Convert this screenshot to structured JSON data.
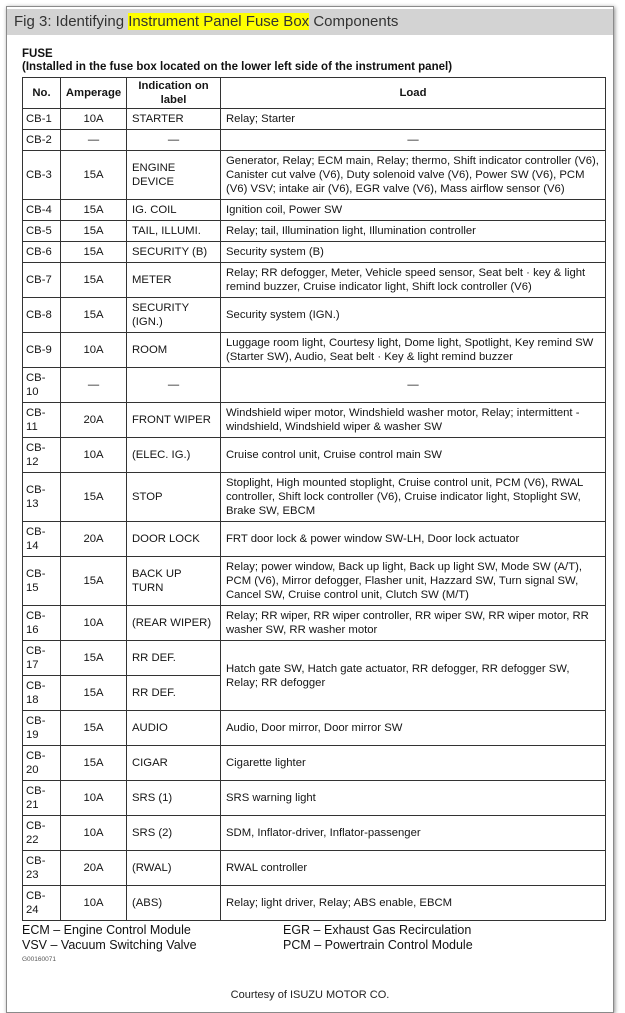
{
  "title": {
    "prefix": "Fig 3: Identifying ",
    "highlight": "Instrument Panel Fuse Box",
    "suffix": " Components",
    "highlight_color": "#ffff00"
  },
  "heading": "FUSE",
  "subheading": "(Installed in the fuse box located on the lower left side of the instrument panel)",
  "columns": [
    "No.",
    "Amperage",
    "Indication on label",
    "Load"
  ],
  "rows": [
    {
      "no": "CB-1",
      "amp": "10A",
      "label": "STARTER",
      "load": "Relay; Starter"
    },
    {
      "no": "CB-2",
      "amp": "—",
      "label": "—",
      "load": "—"
    },
    {
      "no": "CB-3",
      "amp": "15A",
      "label": "ENGINE DEVICE",
      "load": "Generator, Relay; ECM main, Relay; thermo, Shift indicator controller (V6), Canister cut valve (V6), Duty solenoid valve (V6), Power SW (V6), PCM (V6) VSV; intake air (V6), EGR valve (V6), Mass airflow sensor (V6)"
    },
    {
      "no": "CB-4",
      "amp": "15A",
      "label": "IG. COIL",
      "load": "Ignition coil, Power SW"
    },
    {
      "no": "CB-5",
      "amp": "15A",
      "label": "TAIL, ILLUMI.",
      "load": "Relay; tail, Illumination light, Illumination controller"
    },
    {
      "no": "CB-6",
      "amp": "15A",
      "label": "SECURITY (B)",
      "load": "Security system (B)"
    },
    {
      "no": "CB-7",
      "amp": "15A",
      "label": "METER",
      "load": "Relay; RR defogger, Meter, Vehicle speed sensor, Seat belt · key & light remind buzzer, Cruise indicator light, Shift lock controller (V6)"
    },
    {
      "no": "CB-8",
      "amp": "15A",
      "label": "SECURITY (IGN.)",
      "load": "Security system (IGN.)"
    },
    {
      "no": "CB-9",
      "amp": "10A",
      "label": "ROOM",
      "load": "Luggage room light, Courtesy light, Dome light, Spotlight, Key remind SW (Starter SW), Audio, Seat belt · Key & light remind buzzer"
    },
    {
      "no": "CB-10",
      "amp": "—",
      "label": "—",
      "load": "—"
    },
    {
      "no": "CB-11",
      "amp": "20A",
      "label": "FRONT WIPER",
      "load": "Windshield wiper motor, Windshield washer motor, Relay; intermittent - windshield, Windshield wiper & washer SW"
    },
    {
      "no": "CB-12",
      "amp": "10A",
      "label": "(ELEC. IG.)",
      "load": "Cruise control unit, Cruise control main SW"
    },
    {
      "no": "CB-13",
      "amp": "15A",
      "label": "STOP",
      "load": "Stoplight, High mounted stoplight, Cruise control unit, PCM (V6), RWAL controller, Shift lock controller (V6), Cruise indicator light, Stoplight SW, Brake SW, EBCM"
    },
    {
      "no": "CB-14",
      "amp": "20A",
      "label": "DOOR LOCK",
      "load": "FRT door lock & power window SW-LH, Door lock actuator"
    },
    {
      "no": "CB-15",
      "amp": "15A",
      "label": "BACK UP TURN",
      "load": "Relay; power window, Back up light, Back up light SW, Mode SW (A/T), PCM (V6), Mirror defogger, Flasher unit, Hazzard SW, Turn signal SW, Cancel SW, Cruise control unit, Clutch SW (M/T)"
    },
    {
      "no": "CB-16",
      "amp": "10A",
      "label": "(REAR WIPER)",
      "load": "Relay; RR wiper, RR wiper controller, RR wiper SW, RR wiper motor, RR washer SW, RR washer motor"
    },
    {
      "no": "CB-17",
      "amp": "15A",
      "label": "RR DEF.",
      "load": "Hatch gate SW, Hatch gate actuator, RR defogger, RR defogger SW, Relay; RR defogger",
      "load_rows": 2
    },
    {
      "no": "CB-18",
      "amp": "15A",
      "label": "RR DEF."
    },
    {
      "no": "CB-19",
      "amp": "15A",
      "label": "AUDIO",
      "load": "Audio, Door mirror, Door mirror SW"
    },
    {
      "no": "CB-20",
      "amp": "15A",
      "label": "CIGAR",
      "load": "Cigarette lighter"
    },
    {
      "no": "CB-21",
      "amp": "10A",
      "label": "SRS (1)",
      "load": "SRS warning light"
    },
    {
      "no": "CB-22",
      "amp": "10A",
      "label": "SRS (2)",
      "load": "SDM, Inflator-driver, Inflator-passenger"
    },
    {
      "no": "CB-23",
      "amp": "20A",
      "label": "(RWAL)",
      "load": "RWAL controller"
    },
    {
      "no": "CB-24",
      "amp": "10A",
      "label": "(ABS)",
      "load": "Relay; light driver, Relay; ABS enable, EBCM"
    }
  ],
  "legend": {
    "ecm": "ECM – Engine Control Module",
    "vsv": "VSV – Vacuum Switching Valve",
    "egr": "EGR – Exhaust Gas Recirculation",
    "pcm": "PCM – Powertrain Control Module"
  },
  "figure_code": "G00160071",
  "courtesy": "Courtesy of ISUZU MOTOR CO."
}
